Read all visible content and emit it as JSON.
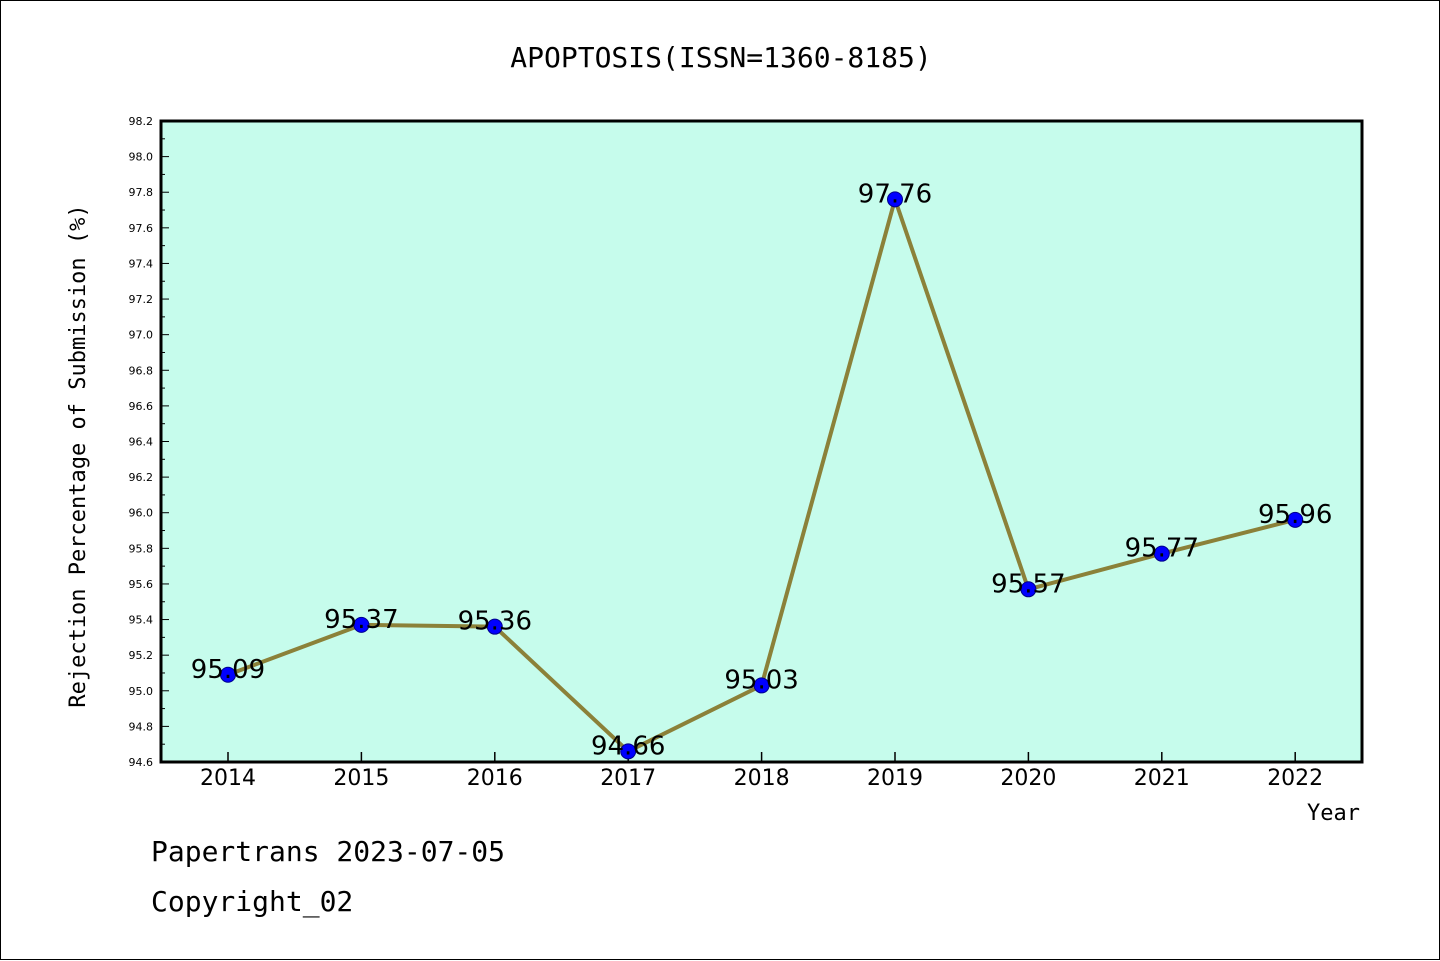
{
  "chart_data": {
    "type": "line",
    "title": "APOPTOSIS(ISSN=1360-8185)",
    "xlabel": "Year",
    "ylabel": "Rejection Percentage of Submission (%)",
    "categories": [
      "2014",
      "2015",
      "2016",
      "2017",
      "2018",
      "2019",
      "2020",
      "2021",
      "2022"
    ],
    "series": [
      {
        "values": [
          95.09,
          95.37,
          95.36,
          94.66,
          95.03,
          97.76,
          95.57,
          95.77,
          95.96
        ]
      }
    ],
    "data_labels": [
      "95.09",
      "95.37",
      "95.36",
      "94.66",
      "95.03",
      "97.76",
      "95.57",
      "95.77",
      "95.96"
    ],
    "ylim": [
      94.6,
      98.2
    ],
    "yticks": [
      "94.6",
      "94.8",
      "95.0",
      "95.2",
      "95.4",
      "95.6",
      "95.8",
      "96.0",
      "96.2",
      "96.4",
      "96.6",
      "96.8",
      "97.0",
      "97.2",
      "97.4",
      "97.6",
      "97.8",
      "98.0",
      "98.2"
    ],
    "grid": false,
    "colors": {
      "plot_background": "#c6fcec",
      "line": "#8b8139",
      "marker": "#0000ff"
    }
  },
  "footer": {
    "line1": "Papertrans 2023-07-05",
    "line2": "Copyright_02"
  }
}
